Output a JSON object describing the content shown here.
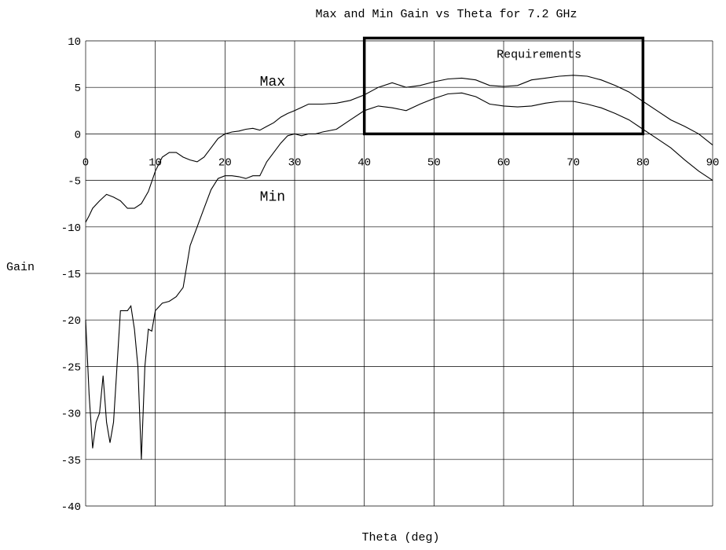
{
  "chart_data": {
    "type": "line",
    "title": "Max and Min Gain vs Theta for 7.2 GHz",
    "xlabel": "Theta (deg)",
    "ylabel": "Gain",
    "xlim": [
      0,
      90
    ],
    "ylim": [
      -40,
      10
    ],
    "xticks": [
      0,
      10,
      20,
      30,
      40,
      50,
      60,
      70,
      80,
      90
    ],
    "yticks": [
      10,
      5,
      0,
      -5,
      -10,
      -15,
      -20,
      -25,
      -30,
      -35,
      -40
    ],
    "grid": true,
    "annotations": [
      {
        "text": "Max",
        "x": 25,
        "y": 5.2
      },
      {
        "text": "Min",
        "x": 25,
        "y": -7.2
      }
    ],
    "requirements_box": {
      "label": "Requirements",
      "x_range": [
        40,
        80
      ],
      "y_range": [
        0,
        10.3
      ]
    },
    "series": [
      {
        "name": "Max",
        "x": [
          0,
          0.5,
          1,
          2,
          3,
          4,
          5,
          6,
          7,
          8,
          9,
          10,
          11,
          12,
          13,
          14,
          15,
          16,
          17,
          18,
          19,
          20,
          21,
          22,
          23,
          24,
          25,
          26,
          27,
          28,
          29,
          30,
          32,
          34,
          36,
          38,
          40,
          42,
          44,
          46,
          48,
          50,
          52,
          54,
          56,
          58,
          60,
          62,
          64,
          66,
          68,
          70,
          72,
          74,
          76,
          78,
          80,
          82,
          84,
          86,
          88,
          90
        ],
        "y": [
          -9.5,
          -8.8,
          -8.0,
          -7.2,
          -6.5,
          -6.8,
          -7.2,
          -8.0,
          -8.0,
          -7.5,
          -6.2,
          -4.0,
          -2.5,
          -2.0,
          -2.0,
          -2.5,
          -2.8,
          -3.0,
          -2.5,
          -1.5,
          -0.5,
          0.0,
          0.2,
          0.3,
          0.5,
          0.6,
          0.4,
          0.8,
          1.2,
          1.8,
          2.2,
          2.5,
          3.2,
          3.2,
          3.3,
          3.6,
          4.2,
          5.0,
          5.5,
          5.0,
          5.2,
          5.6,
          5.9,
          6.0,
          5.8,
          5.2,
          5.1,
          5.2,
          5.8,
          6.0,
          6.2,
          6.3,
          6.2,
          5.8,
          5.2,
          4.5,
          3.5,
          2.5,
          1.5,
          0.8,
          0.0,
          -1.2
        ]
      },
      {
        "name": "Min",
        "x": [
          0,
          0.5,
          1,
          1.5,
          2,
          2.5,
          3,
          3.5,
          4,
          4.5,
          5,
          5.5,
          6,
          6.5,
          7,
          7.5,
          8,
          8.5,
          9,
          9.5,
          10,
          11,
          12,
          13,
          14,
          15,
          16,
          17,
          18,
          19,
          20,
          21,
          22,
          23,
          24,
          25,
          26,
          27,
          28,
          29,
          30,
          31,
          32,
          33,
          34,
          36,
          38,
          40,
          42,
          44,
          46,
          48,
          50,
          52,
          54,
          56,
          58,
          60,
          62,
          64,
          66,
          68,
          70,
          72,
          74,
          76,
          78,
          80,
          82,
          84,
          86,
          88,
          90
        ],
        "y": [
          -20.0,
          -28.0,
          -33.8,
          -31.0,
          -30.0,
          -26.0,
          -31.0,
          -33.2,
          -31.0,
          -25.0,
          -19.0,
          -19.0,
          -19.0,
          -18.5,
          -21.0,
          -25.0,
          -35.0,
          -25.0,
          -21.0,
          -21.2,
          -19.0,
          -18.2,
          -18.0,
          -17.5,
          -16.5,
          -12.0,
          -10.0,
          -8.0,
          -6.0,
          -4.8,
          -4.5,
          -4.5,
          -4.6,
          -4.8,
          -4.5,
          -4.5,
          -3.0,
          -2.0,
          -1.0,
          -0.2,
          0.0,
          -0.2,
          0.0,
          0.0,
          0.2,
          0.5,
          1.5,
          2.5,
          3.0,
          2.8,
          2.5,
          3.2,
          3.8,
          4.3,
          4.4,
          4.0,
          3.2,
          3.0,
          2.9,
          3.0,
          3.3,
          3.5,
          3.5,
          3.2,
          2.8,
          2.2,
          1.5,
          0.5,
          -0.5,
          -1.5,
          -2.8,
          -4.0,
          -5.0
        ]
      }
    ]
  }
}
